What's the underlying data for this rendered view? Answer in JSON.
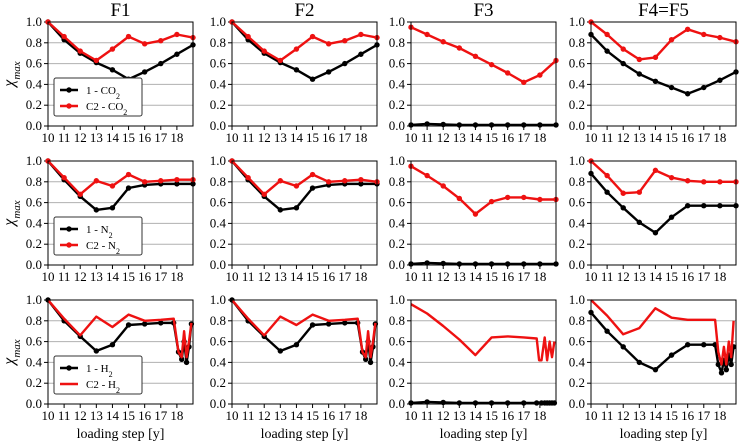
{
  "chart_data": {
    "type": "line",
    "title": "",
    "column_titles": [
      "F1",
      "F2",
      "F3",
      "F4=F5"
    ],
    "xlabel": "loading step [y]",
    "ylabel": "χ",
    "ylabel_sub": "max",
    "xlim": [
      10,
      19
    ],
    "ylim": [
      0,
      1.0
    ],
    "xticks": [
      10,
      11,
      12,
      13,
      14,
      15,
      16,
      17,
      18
    ],
    "yticks": [
      0.0,
      0.2,
      0.4,
      0.6,
      0.8,
      1.0
    ],
    "grid": "horizontal",
    "legend_placement": "bottom-left",
    "colors": {
      "series1": "#000000",
      "series2": "#ee1111",
      "grid": "#b0b0b0",
      "axis": "#000000"
    },
    "rows": [
      {
        "gas_label": "CO",
        "gas_sub": "2",
        "legend": [
          {
            "prefix": "1 - ",
            "marker": true
          },
          {
            "prefix": "C2 - ",
            "marker": true
          }
        ],
        "panels": [
          {
            "column": "F1",
            "series": [
              {
                "name": "1 - CO2",
                "x": [
                  10,
                  11,
                  12,
                  13,
                  14,
                  15,
                  16,
                  17,
                  18,
                  19
                ],
                "y": [
                  1.0,
                  0.83,
                  0.7,
                  0.61,
                  0.54,
                  0.45,
                  0.52,
                  0.6,
                  0.69,
                  0.78
                ]
              },
              {
                "name": "C2 - CO2",
                "x": [
                  10,
                  11,
                  12,
                  13,
                  14,
                  15,
                  16,
                  17,
                  18,
                  19
                ],
                "y": [
                  1.0,
                  0.86,
                  0.72,
                  0.63,
                  0.74,
                  0.86,
                  0.79,
                  0.82,
                  0.88,
                  0.85
                ]
              }
            ]
          },
          {
            "column": "F2",
            "series": [
              {
                "name": "1 - CO2",
                "x": [
                  10,
                  11,
                  12,
                  13,
                  14,
                  15,
                  16,
                  17,
                  18,
                  19
                ],
                "y": [
                  1.0,
                  0.83,
                  0.7,
                  0.61,
                  0.54,
                  0.45,
                  0.52,
                  0.6,
                  0.69,
                  0.78
                ]
              },
              {
                "name": "C2 - CO2",
                "x": [
                  10,
                  11,
                  12,
                  13,
                  14,
                  15,
                  16,
                  17,
                  18,
                  19
                ],
                "y": [
                  1.0,
                  0.86,
                  0.72,
                  0.63,
                  0.74,
                  0.86,
                  0.79,
                  0.82,
                  0.88,
                  0.85
                ]
              }
            ]
          },
          {
            "column": "F3",
            "series": [
              {
                "name": "1 - CO2",
                "x": [
                  10,
                  11,
                  12,
                  13,
                  14,
                  15,
                  16,
                  17,
                  18,
                  19
                ],
                "y": [
                  0.01,
                  0.02,
                  0.015,
                  0.01,
                  0.01,
                  0.01,
                  0.01,
                  0.01,
                  0.01,
                  0.01
                ]
              },
              {
                "name": "C2 - CO2",
                "x": [
                  10,
                  11,
                  12,
                  13,
                  14,
                  15,
                  16,
                  17,
                  18,
                  19
                ],
                "y": [
                  0.95,
                  0.88,
                  0.81,
                  0.75,
                  0.67,
                  0.59,
                  0.51,
                  0.42,
                  0.49,
                  0.63
                ]
              }
            ]
          },
          {
            "column": "F4=F5",
            "series": [
              {
                "name": "1 - CO2",
                "x": [
                  10,
                  11,
                  12,
                  13,
                  14,
                  15,
                  16,
                  17,
                  18,
                  19
                ],
                "y": [
                  0.88,
                  0.72,
                  0.6,
                  0.5,
                  0.43,
                  0.37,
                  0.31,
                  0.37,
                  0.44,
                  0.52
                ]
              },
              {
                "name": "C2 - CO2",
                "x": [
                  10,
                  11,
                  12,
                  13,
                  14,
                  15,
                  16,
                  17,
                  18,
                  19
                ],
                "y": [
                  1.0,
                  0.88,
                  0.74,
                  0.64,
                  0.66,
                  0.83,
                  0.93,
                  0.88,
                  0.85,
                  0.81
                ]
              }
            ]
          }
        ]
      },
      {
        "gas_label": "N",
        "gas_sub": "2",
        "legend": [
          {
            "prefix": "1 - ",
            "marker": true
          },
          {
            "prefix": "C2 - ",
            "marker": true
          }
        ],
        "panels": [
          {
            "column": "F1",
            "series": [
              {
                "name": "1 - N2",
                "x": [
                  10,
                  11,
                  12,
                  13,
                  14,
                  15,
                  16,
                  17,
                  18,
                  19
                ],
                "y": [
                  1.0,
                  0.82,
                  0.66,
                  0.53,
                  0.55,
                  0.74,
                  0.77,
                  0.78,
                  0.78,
                  0.78
                ]
              },
              {
                "name": "C2 - N2",
                "x": [
                  10,
                  11,
                  12,
                  13,
                  14,
                  15,
                  16,
                  17,
                  18,
                  19
                ],
                "y": [
                  1.0,
                  0.84,
                  0.68,
                  0.81,
                  0.76,
                  0.87,
                  0.8,
                  0.81,
                  0.82,
                  0.82
                ]
              }
            ]
          },
          {
            "column": "F2",
            "series": [
              {
                "name": "1 - N2",
                "x": [
                  10,
                  11,
                  12,
                  13,
                  14,
                  15,
                  16,
                  17,
                  18,
                  19
                ],
                "y": [
                  1.0,
                  0.82,
                  0.66,
                  0.53,
                  0.55,
                  0.74,
                  0.77,
                  0.78,
                  0.78,
                  0.78
                ]
              },
              {
                "name": "C2 - N2",
                "x": [
                  10,
                  11,
                  12,
                  13,
                  14,
                  15,
                  16,
                  17,
                  18,
                  19
                ],
                "y": [
                  1.0,
                  0.84,
                  0.68,
                  0.81,
                  0.76,
                  0.87,
                  0.8,
                  0.81,
                  0.82,
                  0.8
                ]
              }
            ]
          },
          {
            "column": "F3",
            "series": [
              {
                "name": "1 - N2",
                "x": [
                  10,
                  11,
                  12,
                  13,
                  14,
                  15,
                  16,
                  17,
                  18,
                  19
                ],
                "y": [
                  0.01,
                  0.02,
                  0.015,
                  0.01,
                  0.01,
                  0.01,
                  0.01,
                  0.01,
                  0.01,
                  0.01
                ]
              },
              {
                "name": "C2 - N2",
                "x": [
                  10,
                  11,
                  12,
                  13,
                  14,
                  15,
                  16,
                  17,
                  18,
                  19
                ],
                "y": [
                  0.95,
                  0.86,
                  0.76,
                  0.64,
                  0.49,
                  0.61,
                  0.65,
                  0.65,
                  0.63,
                  0.63
                ]
              }
            ]
          },
          {
            "column": "F4=F5",
            "series": [
              {
                "name": "1 - N2",
                "x": [
                  10,
                  11,
                  12,
                  13,
                  14,
                  15,
                  16,
                  17,
                  18,
                  19
                ],
                "y": [
                  0.88,
                  0.7,
                  0.55,
                  0.41,
                  0.31,
                  0.46,
                  0.57,
                  0.57,
                  0.57,
                  0.57
                ]
              },
              {
                "name": "C2 - N2",
                "x": [
                  10,
                  11,
                  12,
                  13,
                  14,
                  15,
                  16,
                  17,
                  18,
                  19
                ],
                "y": [
                  1.0,
                  0.86,
                  0.69,
                  0.7,
                  0.91,
                  0.84,
                  0.81,
                  0.8,
                  0.8,
                  0.8
                ]
              }
            ]
          }
        ]
      },
      {
        "gas_label": "H",
        "gas_sub": "2",
        "legend": [
          {
            "prefix": "1 - ",
            "marker": true
          },
          {
            "prefix": "C2 - ",
            "marker": false
          }
        ],
        "panels": [
          {
            "column": "F1",
            "series": [
              {
                "name": "1 - H2",
                "x": [
                  10,
                  11,
                  12,
                  13,
                  14,
                  15,
                  16,
                  17,
                  17.8,
                  18.1,
                  18.3,
                  18.45,
                  18.6,
                  18.75,
                  18.9
                ],
                "y": [
                  1.0,
                  0.8,
                  0.65,
                  0.51,
                  0.57,
                  0.76,
                  0.77,
                  0.78,
                  0.78,
                  0.5,
                  0.43,
                  0.6,
                  0.4,
                  0.55,
                  0.77
                ],
                "markers": true
              },
              {
                "name": "C2 - H2",
                "x": [
                  10,
                  11,
                  12,
                  13,
                  14,
                  15,
                  16,
                  17,
                  17.8,
                  18.1,
                  18.3,
                  18.45,
                  18.6,
                  18.75,
                  18.9
                ],
                "y": [
                  1.0,
                  0.82,
                  0.66,
                  0.84,
                  0.74,
                  0.86,
                  0.8,
                  0.81,
                  0.82,
                  0.5,
                  0.45,
                  0.7,
                  0.45,
                  0.6,
                  0.78
                ],
                "markers": false
              }
            ]
          },
          {
            "column": "F2",
            "series": [
              {
                "name": "1 - H2",
                "x": [
                  10,
                  11,
                  12,
                  13,
                  14,
                  15,
                  16,
                  17,
                  17.8,
                  18.1,
                  18.3,
                  18.45,
                  18.6,
                  18.75,
                  18.9
                ],
                "y": [
                  1.0,
                  0.8,
                  0.65,
                  0.51,
                  0.57,
                  0.76,
                  0.77,
                  0.78,
                  0.78,
                  0.5,
                  0.43,
                  0.6,
                  0.4,
                  0.55,
                  0.77
                ],
                "markers": true
              },
              {
                "name": "C2 - H2",
                "x": [
                  10,
                  11,
                  12,
                  13,
                  14,
                  15,
                  16,
                  17,
                  17.8,
                  18.1,
                  18.3,
                  18.45,
                  18.6,
                  18.75,
                  18.9
                ],
                "y": [
                  1.0,
                  0.82,
                  0.66,
                  0.84,
                  0.76,
                  0.86,
                  0.8,
                  0.81,
                  0.82,
                  0.5,
                  0.45,
                  0.7,
                  0.45,
                  0.6,
                  0.78
                ],
                "markers": false
              }
            ]
          },
          {
            "column": "F3",
            "series": [
              {
                "name": "1 - H2",
                "x": [
                  10,
                  11,
                  12,
                  13,
                  14,
                  15,
                  16,
                  17,
                  17.8,
                  18.1,
                  18.3,
                  18.45,
                  18.6,
                  18.75,
                  18.9
                ],
                "y": [
                  0.01,
                  0.02,
                  0.015,
                  0.01,
                  0.01,
                  0.01,
                  0.01,
                  0.01,
                  0.01,
                  0.01,
                  0.01,
                  0.01,
                  0.01,
                  0.01,
                  0.01
                ],
                "markers": true
              },
              {
                "name": "C2 - H2",
                "x": [
                  10,
                  11,
                  12,
                  13,
                  14,
                  15,
                  16,
                  17,
                  17.8,
                  17.95,
                  18.1,
                  18.3,
                  18.45,
                  18.6,
                  18.75,
                  18.9
                ],
                "y": [
                  0.96,
                  0.87,
                  0.75,
                  0.62,
                  0.47,
                  0.64,
                  0.65,
                  0.64,
                  0.63,
                  0.42,
                  0.42,
                  0.64,
                  0.42,
                  0.6,
                  0.45,
                  0.6
                ],
                "markers": false
              }
            ]
          },
          {
            "column": "F4=F5",
            "series": [
              {
                "name": "1 - H2",
                "x": [
                  10,
                  11,
                  12,
                  13,
                  14,
                  15,
                  16,
                  17,
                  17.7,
                  17.9,
                  18.1,
                  18.25,
                  18.4,
                  18.55,
                  18.7,
                  18.85
                ],
                "y": [
                  0.88,
                  0.7,
                  0.55,
                  0.4,
                  0.33,
                  0.47,
                  0.57,
                  0.57,
                  0.57,
                  0.38,
                  0.3,
                  0.42,
                  0.33,
                  0.47,
                  0.38,
                  0.55
                ],
                "markers": true
              },
              {
                "name": "C2 - H2",
                "x": [
                  10,
                  11,
                  12,
                  13,
                  14,
                  15,
                  16,
                  17,
                  17.7,
                  17.9,
                  18.1,
                  18.25,
                  18.4,
                  18.55,
                  18.7,
                  18.85
                ],
                "y": [
                  1.0,
                  0.85,
                  0.67,
                  0.73,
                  0.92,
                  0.83,
                  0.81,
                  0.81,
                  0.81,
                  0.5,
                  0.38,
                  0.55,
                  0.38,
                  0.6,
                  0.45,
                  0.8
                ],
                "markers": false
              }
            ]
          }
        ]
      }
    ]
  }
}
